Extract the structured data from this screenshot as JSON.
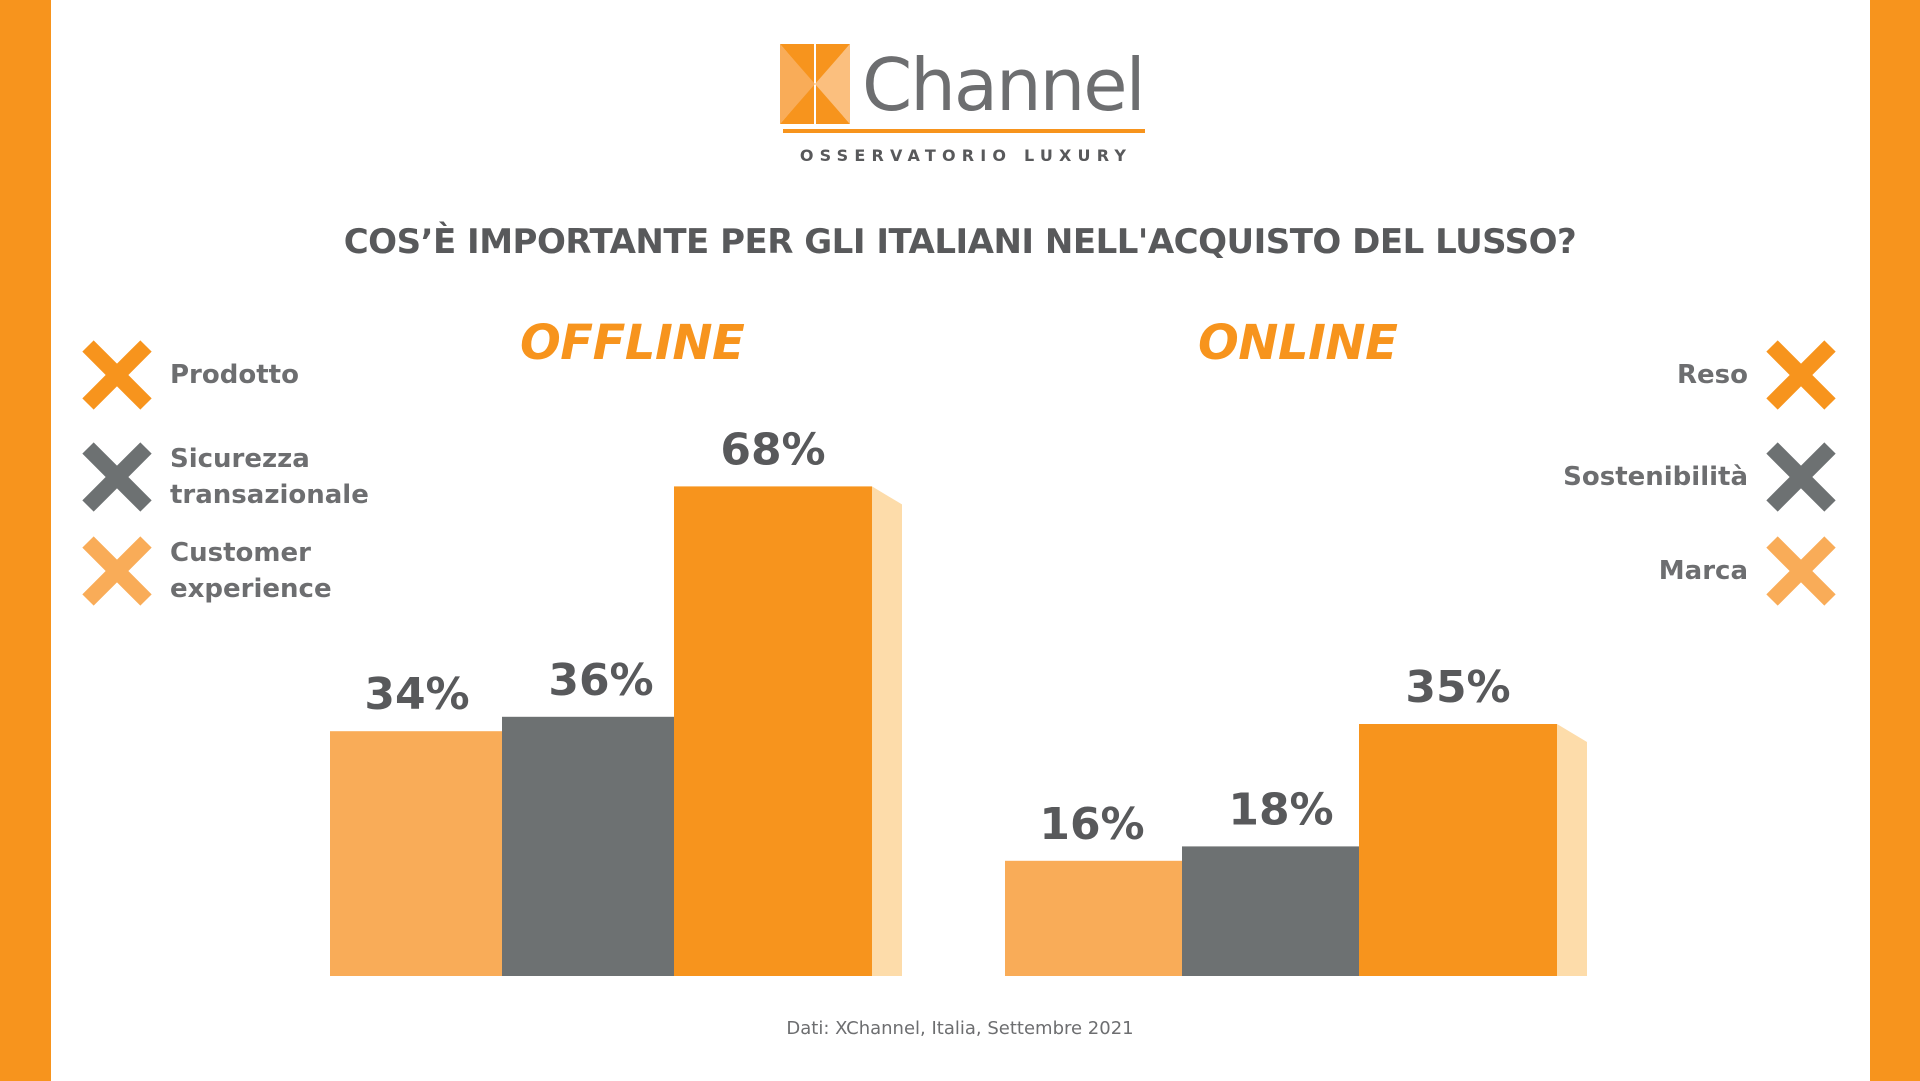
{
  "logo": {
    "wordmark": "Channel",
    "tagline": "OSSERVATORIO LUXURY"
  },
  "title": "COS’È IMPORTANTE PER GLI ITALIANI NELL'ACQUISTO DEL LUSSO?",
  "source_note": "Dati: XChannel, Italia, Settembre 2021",
  "colors": {
    "accent": "#f7941d",
    "light_orange": "#f9ac58",
    "dark_gray": "#6d7172",
    "cream_side": "#fddcaa",
    "gray_side": "#bdb8b4"
  },
  "legend_left": [
    {
      "label_lines": [
        "Prodotto"
      ],
      "icon": "x-mark-icon",
      "color": "#f7941d"
    },
    {
      "label_lines": [
        "Sicurezza",
        "transazionale"
      ],
      "icon": "x-mark-icon",
      "color": "#6d7172"
    },
    {
      "label_lines": [
        "Customer",
        "experience"
      ],
      "icon": "x-mark-icon",
      "color": "#f9ac58"
    }
  ],
  "legend_right": [
    {
      "label": "Reso",
      "icon": "x-mark-icon",
      "color": "#f7941d"
    },
    {
      "label": "Sostenibilità",
      "icon": "x-mark-icon",
      "color": "#6d7172"
    },
    {
      "label": "Marca",
      "icon": "x-mark-icon",
      "color": "#f9ac58"
    }
  ],
  "chart_data": [
    {
      "type": "bar",
      "title": "OFFLINE",
      "ylim": [
        0,
        100
      ],
      "bars": [
        {
          "name": "Customer experience",
          "value": 34,
          "label": "34%",
          "color": "#f9ac58",
          "side": "#fddcaa"
        },
        {
          "name": "Sicurezza transazionale",
          "value": 36,
          "label": "36%",
          "color": "#6d7172",
          "side": "#bdb8b4"
        },
        {
          "name": "Prodotto",
          "value": 68,
          "label": "68%",
          "color": "#f7941d",
          "side": "#fddcaa"
        }
      ]
    },
    {
      "type": "bar",
      "title": "ONLINE",
      "ylim": [
        0,
        100
      ],
      "bars": [
        {
          "name": "Marca",
          "value": 16,
          "label": "16%",
          "color": "#f9ac58",
          "side": "#fddcaa"
        },
        {
          "name": "Sostenibilità",
          "value": 18,
          "label": "18%",
          "color": "#6d7172",
          "side": "#bdb8b4"
        },
        {
          "name": "Reso",
          "value": 35,
          "label": "35%",
          "color": "#f7941d",
          "side": "#fddcaa"
        }
      ]
    }
  ]
}
